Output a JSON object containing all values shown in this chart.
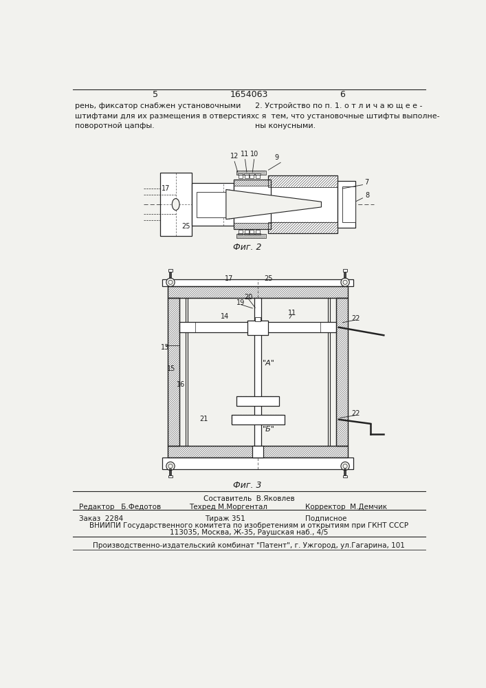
{
  "page_number_left": "5",
  "page_number_center": "1654063",
  "page_number_right": "6",
  "text_left_col": "рень, фиксатор снабжен установочными\nштифтами для их размещения в отверстиях\nповоротной цапфы.",
  "text_right_col": "2. Устройство по п. 1. о т л и ч а ю щ е е -\nс я  тем, что установочные штифты выполне-\nны конусными.",
  "fig2_caption": "Фиг. 2",
  "fig3_caption": "Фиг. 3",
  "editor_line": "Редактор   Б.Федотов",
  "compiler_line1": "Составитель  В.Яковлев",
  "techred_line": "Техред М.Моргентал",
  "corrector_line": "Корректор  М.Демчик",
  "order_line": "Заказ  2284",
  "tirazh_line": "Тираж 351",
  "podpisnoe_line": "Подписное",
  "vniiipi_line": "ВНИИПИ Государственного комитета по изобретениям и открытиям при ГКНТ СССР",
  "address_line": "113035, Москва, Ж-35, Раушская наб., 4/5",
  "publisher_line": "Производственно-издательский комбинат \"Патент\", г. Ужгород, ул.Гагарина, 101",
  "bg_color": "#f2f2ee",
  "text_color": "#1a1a1a",
  "line_color": "#222222"
}
